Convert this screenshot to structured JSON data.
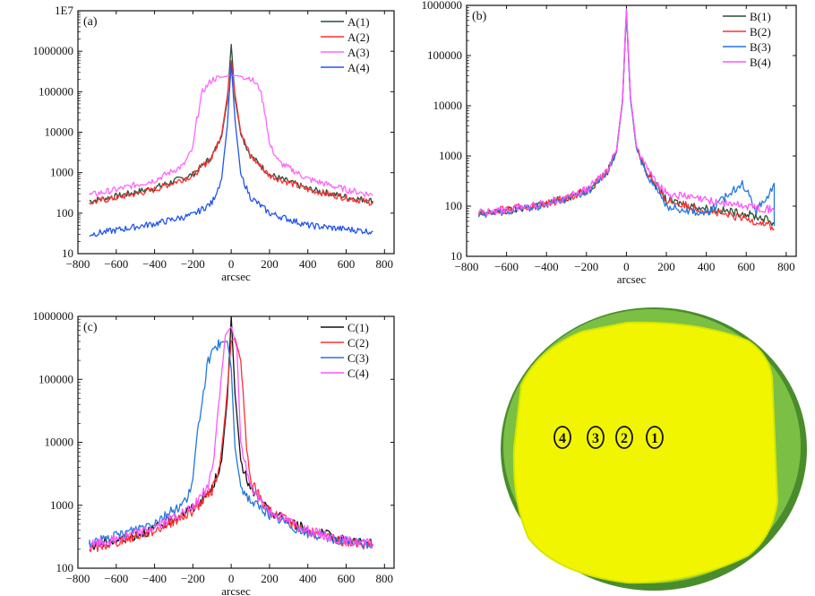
{
  "chart_data": [
    {
      "id": "a",
      "type": "line",
      "panel_label": "(a)",
      "xlabel": "arcsec",
      "ylabel": "",
      "xlim": [
        -800,
        850
      ],
      "ylim": [
        10,
        10000000
      ],
      "yscale": "log",
      "xticks": [
        -800,
        -600,
        -400,
        -200,
        0,
        200,
        400,
        600,
        800
      ],
      "xtick_labels": [
        "−800",
        "−600",
        "−400",
        "−200",
        "0",
        "200",
        "400",
        "600",
        "800"
      ],
      "yticks": [
        10,
        100,
        1000,
        10000,
        100000,
        1000000,
        10000000
      ],
      "ytick_labels": [
        "10",
        "100",
        "1000",
        "10000",
        "100000",
        "1000000",
        "1E7"
      ],
      "legend_position": "top-right",
      "series": [
        {
          "name": "A(1)",
          "color": "#2a4f3a",
          "x": [
            -740,
            -600,
            -400,
            -200,
            -100,
            -50,
            -20,
            0,
            20,
            50,
            100,
            200,
            400,
            600,
            740
          ],
          "y": [
            200,
            260,
            420,
            900,
            2500,
            8000,
            60000,
            1500000,
            70000,
            9000,
            2700,
            900,
            400,
            250,
            200
          ]
        },
        {
          "name": "A(2)",
          "color": "#ff3030",
          "x": [
            -740,
            -600,
            -400,
            -200,
            -100,
            -50,
            -20,
            0,
            20,
            50,
            100,
            200,
            400,
            600,
            740
          ],
          "y": [
            180,
            240,
            380,
            850,
            2400,
            9000,
            80000,
            600000,
            90000,
            10000,
            2600,
            850,
            380,
            240,
            180
          ]
        },
        {
          "name": "A(3)",
          "color": "#ff66ff",
          "x": [
            -740,
            -600,
            -400,
            -250,
            -200,
            -180,
            -150,
            -100,
            0,
            100,
            150,
            180,
            200,
            250,
            400,
            600,
            740
          ],
          "y": [
            280,
            380,
            650,
            1500,
            4000,
            20000,
            100000,
            200000,
            260000,
            220000,
            120000,
            25000,
            5000,
            1800,
            700,
            380,
            280
          ]
        },
        {
          "name": "A(4)",
          "color": "#2255ee",
          "x": [
            -740,
            -600,
            -400,
            -200,
            -100,
            -50,
            -20,
            0,
            20,
            50,
            100,
            200,
            400,
            600,
            740
          ],
          "y": [
            30,
            38,
            55,
            90,
            180,
            700,
            15000,
            500000,
            20000,
            900,
            250,
            100,
            50,
            40,
            35
          ]
        }
      ]
    },
    {
      "id": "b",
      "type": "line",
      "panel_label": "(b)",
      "xlabel": "arcsec",
      "ylabel": "",
      "xlim": [
        -800,
        850
      ],
      "ylim": [
        10,
        1000000
      ],
      "yscale": "log",
      "xticks": [
        -800,
        -600,
        -400,
        -200,
        0,
        200,
        400,
        600,
        800
      ],
      "xtick_labels": [
        "−800",
        "−600",
        "−400",
        "−200",
        "0",
        "200",
        "400",
        "600",
        "800"
      ],
      "yticks": [
        10,
        100,
        1000,
        10000,
        100000,
        1000000
      ],
      "ytick_labels": [
        "10",
        "100",
        "1000",
        "10000",
        "100000",
        "1000000"
      ],
      "legend_position": "top-right",
      "series": [
        {
          "name": "B(1)",
          "color": "#2a4f3a",
          "x": [
            -740,
            -600,
            -400,
            -200,
            -100,
            -50,
            -20,
            0,
            20,
            50,
            100,
            200,
            400,
            600,
            700,
            740
          ],
          "y": [
            70,
            80,
            110,
            200,
            450,
            1200,
            12000,
            800000,
            15000,
            1500,
            500,
            130,
            90,
            70,
            55,
            45
          ]
        },
        {
          "name": "B(2)",
          "color": "#ff3030",
          "x": [
            -740,
            -600,
            -400,
            -200,
            -100,
            -50,
            -20,
            0,
            20,
            50,
            100,
            200,
            400,
            600,
            700,
            740
          ],
          "y": [
            70,
            85,
            110,
            200,
            450,
            1200,
            12000,
            750000,
            15000,
            1500,
            500,
            130,
            80,
            55,
            45,
            35
          ]
        },
        {
          "name": "B(3)",
          "color": "#2277dd",
          "x": [
            -740,
            -600,
            -400,
            -200,
            -100,
            -50,
            -20,
            0,
            20,
            50,
            100,
            200,
            400,
            580,
            650,
            740,
            740
          ],
          "y": [
            65,
            80,
            105,
            190,
            430,
            1200,
            12000,
            700000,
            14000,
            1400,
            450,
            100,
            70,
            300,
            80,
            250,
            40
          ]
        },
        {
          "name": "B(4)",
          "color": "#ff55ff",
          "x": [
            -740,
            -600,
            -400,
            -200,
            -100,
            -50,
            -20,
            0,
            20,
            50,
            100,
            200,
            400,
            600,
            700,
            740
          ],
          "y": [
            75,
            85,
            115,
            210,
            480,
            1300,
            13000,
            850000,
            16000,
            1600,
            550,
            180,
            130,
            100,
            90,
            80
          ]
        }
      ]
    },
    {
      "id": "c",
      "type": "line",
      "panel_label": "(c)",
      "xlabel": "arcsec",
      "ylabel": "",
      "xlim": [
        -800,
        850
      ],
      "ylim": [
        100,
        1000000
      ],
      "yscale": "log",
      "xticks": [
        -800,
        -600,
        -400,
        -200,
        0,
        200,
        400,
        600,
        800
      ],
      "xtick_labels": [
        "−800",
        "−600",
        "−400",
        "−200",
        "0",
        "200",
        "400",
        "600",
        "800"
      ],
      "yticks": [
        100,
        1000,
        10000,
        100000,
        1000000
      ],
      "ytick_labels": [
        "100",
        "1000",
        "10000",
        "100000",
        "1000000"
      ],
      "legend_position": "top-right",
      "series": [
        {
          "name": "C(1)",
          "color": "#111111",
          "x": [
            -740,
            -600,
            -400,
            -200,
            -100,
            -50,
            -20,
            0,
            20,
            50,
            100,
            200,
            400,
            600,
            740
          ],
          "y": [
            220,
            270,
            420,
            900,
            1800,
            5000,
            50000,
            1000000,
            60000,
            5000,
            1800,
            800,
            400,
            280,
            240
          ]
        },
        {
          "name": "C(2)",
          "color": "#ff3030",
          "x": [
            -740,
            -600,
            -400,
            -200,
            -100,
            -60,
            -30,
            0,
            20,
            50,
            80,
            100,
            200,
            400,
            600,
            740
          ],
          "y": [
            200,
            260,
            400,
            800,
            1700,
            4000,
            30000,
            400000,
            450000,
            200000,
            8000,
            2500,
            800,
            380,
            260,
            230
          ]
        },
        {
          "name": "C(3)",
          "color": "#2277dd",
          "x": [
            -740,
            -600,
            -400,
            -260,
            -220,
            -200,
            -170,
            -120,
            -60,
            -20,
            0,
            20,
            50,
            100,
            200,
            400,
            600,
            740
          ],
          "y": [
            250,
            320,
            550,
            1000,
            1500,
            2500,
            20000,
            200000,
            380000,
            400000,
            150000,
            8000,
            2000,
            1200,
            700,
            350,
            270,
            230
          ]
        },
        {
          "name": "C(4)",
          "color": "#ff55ff",
          "x": [
            -740,
            -600,
            -400,
            -200,
            -120,
            -90,
            -60,
            -30,
            0,
            30,
            50,
            100,
            200,
            400,
            600,
            740
          ],
          "y": [
            230,
            290,
            450,
            900,
            2000,
            6000,
            60000,
            500000,
            700000,
            300000,
            10000,
            2000,
            800,
            400,
            270,
            240
          ]
        }
      ]
    }
  ],
  "wafer": {
    "type": "image",
    "colors": {
      "rim": "#7bbf45",
      "rim_dark": "#4a8c2c",
      "face": "#f2f500",
      "face_edge": "#d6e600"
    },
    "markers": [
      {
        "label": "4"
      },
      {
        "label": "3"
      },
      {
        "label": "2"
      },
      {
        "label": "1"
      }
    ]
  }
}
